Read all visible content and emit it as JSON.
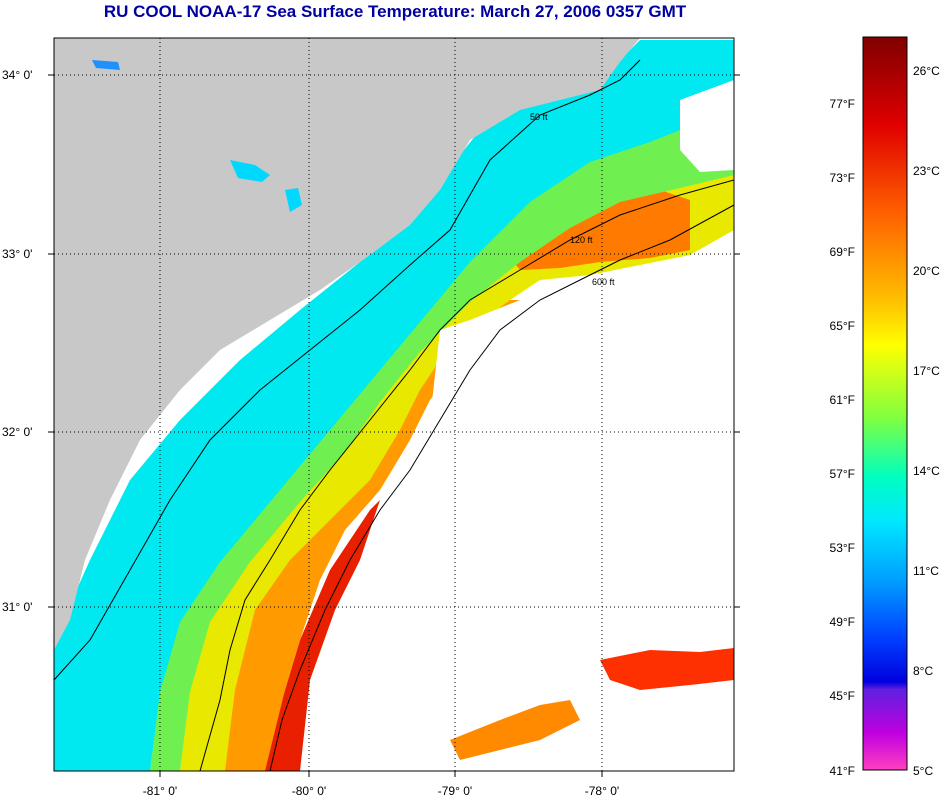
{
  "title": "RU COOL  NOAA-17  Sea Surface Temperature:  March 27, 2006 0357 GMT",
  "map": {
    "lat_labels": [
      "34° 0'",
      "33° 0'",
      "32° 0'",
      "31° 0'"
    ],
    "lon_labels": [
      "-81° 0'",
      "-80° 0'",
      "-79° 0'",
      "-78° 0'"
    ],
    "isobaths": [
      {
        "label": "50 ft"
      },
      {
        "label": "120 ft"
      },
      {
        "label": "600 ft"
      }
    ]
  },
  "colorbar": {
    "fahrenheit": [
      "77°F",
      "73°F",
      "69°F",
      "65°F",
      "61°F",
      "57°F",
      "53°F",
      "49°F",
      "45°F",
      "41°F"
    ],
    "celsius": [
      "26°C",
      "23°C",
      "20°C",
      "17°C",
      "14°C",
      "11°C",
      "8°C",
      "5°C"
    ]
  },
  "colors": {
    "land": "#c8c8c8",
    "cloud": "#ffffff",
    "title": "#0000a0"
  }
}
